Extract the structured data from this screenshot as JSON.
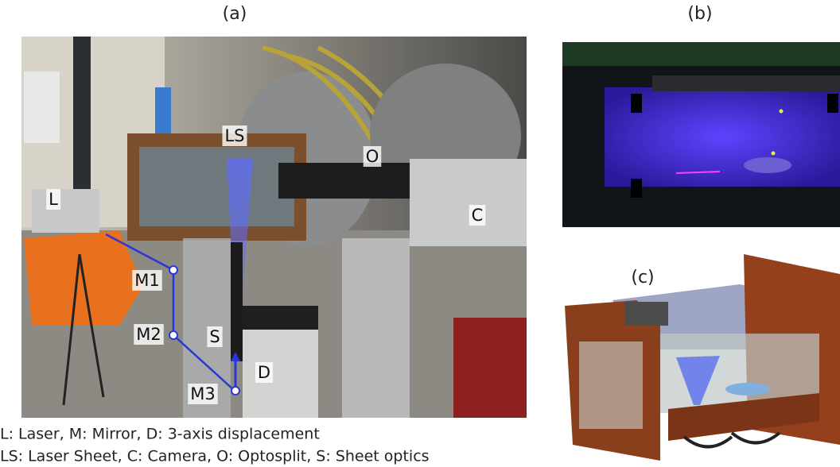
{
  "panels": [
    {
      "label": "(a)",
      "annotations": [
        "L",
        "LS",
        "O",
        "C",
        "M1",
        "M2",
        "S",
        "D",
        "M3"
      ]
    },
    {
      "label": "(b)"
    },
    {
      "label": "(c)"
    }
  ],
  "caption": [
    "L: Laser, M: Mirror, D: 3-axis displacement",
    "LS: Laser Sheet, C: Camera, O: Optosplit, S: Sheet optics"
  ]
}
